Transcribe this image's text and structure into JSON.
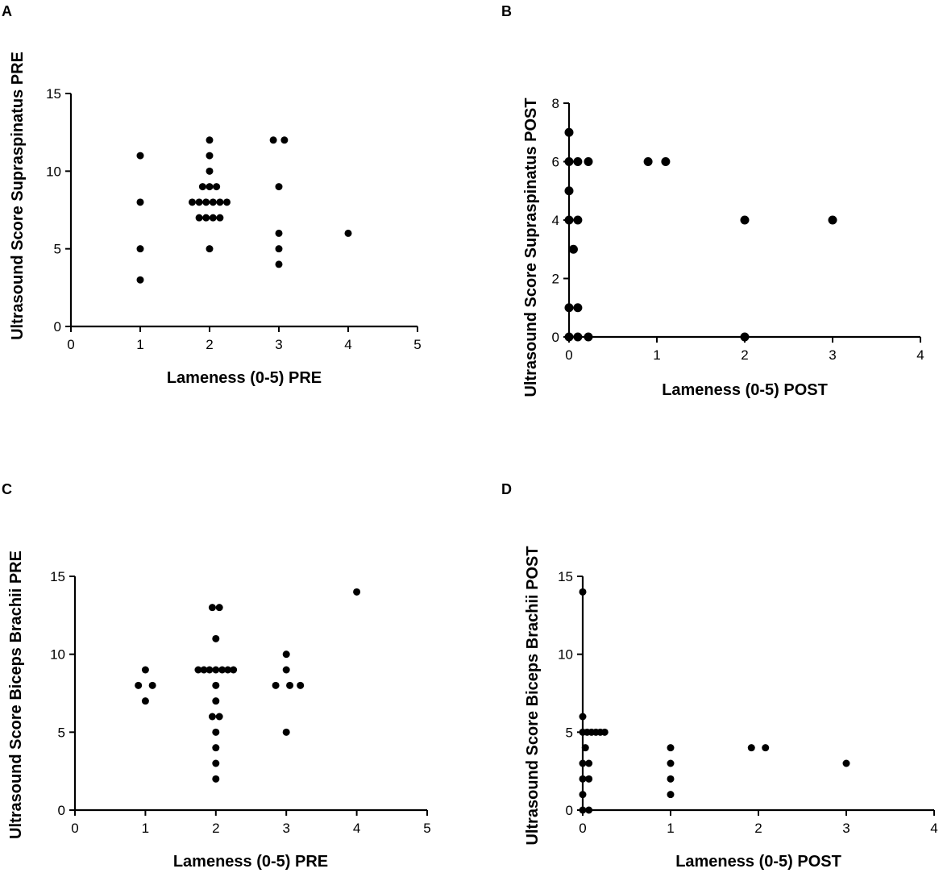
{
  "chart_data": [
    {
      "panel": "A",
      "type": "scatter",
      "xlabel": "Lameness (0-5) PRE",
      "ylabel": "Ultrasound Score Supraspinatus PRE",
      "xlim": [
        0,
        5
      ],
      "ylim": [
        0,
        15
      ],
      "xticks": [
        "0",
        "1",
        "2",
        "3",
        "4",
        "5"
      ],
      "yticks": [
        "0",
        "5",
        "10",
        "15"
      ],
      "points": [
        [
          1,
          11
        ],
        [
          1,
          8
        ],
        [
          1,
          5
        ],
        [
          1,
          3
        ],
        [
          2,
          12
        ],
        [
          2,
          11
        ],
        [
          2,
          10
        ],
        [
          1.9,
          9
        ],
        [
          2,
          9
        ],
        [
          2.1,
          9
        ],
        [
          1.75,
          8
        ],
        [
          1.85,
          8
        ],
        [
          1.95,
          8
        ],
        [
          2.05,
          8
        ],
        [
          2.15,
          8
        ],
        [
          2.25,
          8
        ],
        [
          1.85,
          7
        ],
        [
          1.95,
          7
        ],
        [
          2.05,
          7
        ],
        [
          2.15,
          7
        ],
        [
          2,
          5
        ],
        [
          2.92,
          12
        ],
        [
          3.08,
          12
        ],
        [
          3,
          9
        ],
        [
          3,
          6
        ],
        [
          3,
          5
        ],
        [
          3,
          4
        ],
        [
          4,
          6
        ]
      ]
    },
    {
      "panel": "B",
      "type": "scatter",
      "xlabel": "Lameness (0-5) POST",
      "ylabel": "Ultrasound  Score Supraspinatus POST",
      "xlim": [
        0,
        4
      ],
      "ylim": [
        0,
        8
      ],
      "xticks": [
        "0",
        "1",
        "2",
        "3",
        "4"
      ],
      "yticks": [
        "0",
        "2",
        "4",
        "6",
        "8"
      ],
      "points": [
        [
          0,
          7
        ],
        [
          0,
          6
        ],
        [
          0.1,
          6
        ],
        [
          0.22,
          6
        ],
        [
          0,
          5
        ],
        [
          0,
          4
        ],
        [
          0.1,
          4
        ],
        [
          0.05,
          3
        ],
        [
          0,
          1
        ],
        [
          0.1,
          1
        ],
        [
          0,
          0
        ],
        [
          0.1,
          0
        ],
        [
          0.22,
          0
        ],
        [
          0.9,
          6
        ],
        [
          1.1,
          6
        ],
        [
          2,
          4
        ],
        [
          3,
          4
        ],
        [
          2,
          0
        ]
      ]
    },
    {
      "panel": "C",
      "type": "scatter",
      "xlabel": "Lameness (0-5) PRE",
      "ylabel": "Ultrasound Score  Biceps Brachii PRE",
      "xlim": [
        0,
        5
      ],
      "ylim": [
        0,
        15
      ],
      "xticks": [
        "0",
        "1",
        "2",
        "3",
        "4",
        "5"
      ],
      "yticks": [
        "0",
        "5",
        "10",
        "15"
      ],
      "points": [
        [
          1,
          9
        ],
        [
          0.9,
          8
        ],
        [
          1.1,
          8
        ],
        [
          1,
          7
        ],
        [
          1.95,
          13
        ],
        [
          2.05,
          13
        ],
        [
          2,
          11
        ],
        [
          1.75,
          9
        ],
        [
          1.83,
          9
        ],
        [
          1.91,
          9
        ],
        [
          2,
          9
        ],
        [
          2.09,
          9
        ],
        [
          2.17,
          9
        ],
        [
          2.25,
          9
        ],
        [
          2,
          8
        ],
        [
          2,
          7
        ],
        [
          1.95,
          6
        ],
        [
          2.05,
          6
        ],
        [
          2,
          5
        ],
        [
          2,
          4
        ],
        [
          2,
          3
        ],
        [
          2,
          2
        ],
        [
          3,
          10
        ],
        [
          3,
          9
        ],
        [
          2.85,
          8
        ],
        [
          3.05,
          8
        ],
        [
          3.2,
          8
        ],
        [
          3,
          5
        ],
        [
          4,
          14
        ]
      ]
    },
    {
      "panel": "D",
      "type": "scatter",
      "xlabel": "Lameness (0-5) POST",
      "ylabel": "Ultrasound  Score Biceps Brachii POST",
      "xlim": [
        0,
        4
      ],
      "ylim": [
        0,
        15
      ],
      "xticks": [
        "0",
        "1",
        "2",
        "3",
        "4"
      ],
      "yticks": [
        "0",
        "5",
        "10",
        "15"
      ],
      "points": [
        [
          0,
          14
        ],
        [
          0,
          6
        ],
        [
          0,
          5
        ],
        [
          0.05,
          5
        ],
        [
          0.1,
          5
        ],
        [
          0.15,
          5
        ],
        [
          0.2,
          5
        ],
        [
          0.25,
          5
        ],
        [
          0.03,
          4
        ],
        [
          0,
          3
        ],
        [
          0.07,
          3
        ],
        [
          0,
          2
        ],
        [
          0.07,
          2
        ],
        [
          0,
          1
        ],
        [
          0,
          0
        ],
        [
          0.07,
          0
        ],
        [
          1,
          4
        ],
        [
          1,
          3
        ],
        [
          1,
          2
        ],
        [
          1,
          1
        ],
        [
          1.92,
          4
        ],
        [
          2.08,
          4
        ],
        [
          3,
          3
        ]
      ]
    }
  ]
}
